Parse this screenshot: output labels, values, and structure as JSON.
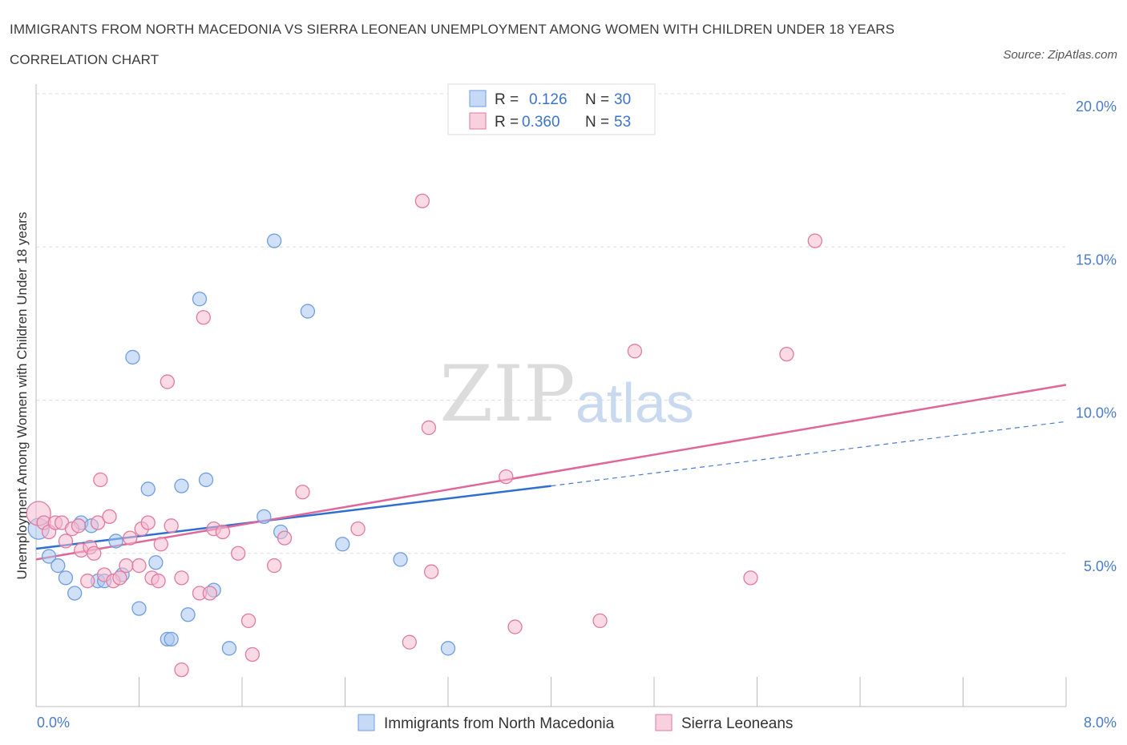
{
  "chart_data": {
    "type": "scatter",
    "title": "IMMIGRANTS FROM NORTH MACEDONIA VS SIERRA LEONEAN UNEMPLOYMENT AMONG WOMEN WITH CHILDREN UNDER 18 YEARS CORRELATION CHART",
    "source": "Source: ZipAtlas.com",
    "ylabel": "Unemployment Among Women with Children Under 18 years",
    "xlim": [
      0,
      8
    ],
    "ylim": [
      0,
      20
    ],
    "x_tick_labels": [
      "0.0%",
      "8.0%"
    ],
    "y_ticks": [
      5,
      10,
      15,
      20
    ],
    "y_tick_labels": [
      "5.0%",
      "10.0%",
      "15.0%",
      "20.0%"
    ],
    "watermark": {
      "zip": "ZIP",
      "atlas": "atlas"
    },
    "legend": [
      {
        "r_label": "R =",
        "r_value": "0.126",
        "n_label": "N =",
        "n_value": "30"
      },
      {
        "r_label": "R =",
        "r_value": "0.360",
        "n_label": "N =",
        "n_value": "53"
      }
    ],
    "series": [
      {
        "name": "Immigrants from North Macedonia",
        "color": "#6f9ee0",
        "fill": "#aac6ef",
        "trend": {
          "x0": 0.0,
          "y0": 5.15,
          "x1": 4.0,
          "y1": 7.2,
          "dash_to_x": 8.0,
          "dash_to_y": 9.3
        },
        "points": [
          [
            0.02,
            5.8
          ],
          [
            0.1,
            4.9
          ],
          [
            0.17,
            4.6
          ],
          [
            0.23,
            4.2
          ],
          [
            0.3,
            3.7
          ],
          [
            0.35,
            6.0
          ],
          [
            0.43,
            5.9
          ],
          [
            0.48,
            4.1
          ],
          [
            0.53,
            4.1
          ],
          [
            0.62,
            5.4
          ],
          [
            0.67,
            4.3
          ],
          [
            0.75,
            11.4
          ],
          [
            0.8,
            3.2
          ],
          [
            0.87,
            7.1
          ],
          [
            0.93,
            4.7
          ],
          [
            1.02,
            2.2
          ],
          [
            1.05,
            2.2
          ],
          [
            1.13,
            7.2
          ],
          [
            1.18,
            3.0
          ],
          [
            1.27,
            13.3
          ],
          [
            1.32,
            7.4
          ],
          [
            1.38,
            3.8
          ],
          [
            1.5,
            1.9
          ],
          [
            1.77,
            6.2
          ],
          [
            1.85,
            15.2
          ],
          [
            1.9,
            5.7
          ],
          [
            2.11,
            12.9
          ],
          [
            2.38,
            5.3
          ],
          [
            2.83,
            4.8
          ],
          [
            3.2,
            1.9
          ]
        ]
      },
      {
        "name": "Sierra Leoneans",
        "color": "#e07ba0",
        "fill": "#f5bccf",
        "trend": {
          "x0": 0.0,
          "y0": 4.8,
          "x1": 8.0,
          "y1": 10.5
        },
        "points": [
          [
            0.02,
            6.3
          ],
          [
            0.06,
            6.0
          ],
          [
            0.1,
            5.7
          ],
          [
            0.15,
            6.0
          ],
          [
            0.2,
            6.0
          ],
          [
            0.23,
            5.4
          ],
          [
            0.28,
            5.8
          ],
          [
            0.33,
            5.9
          ],
          [
            0.35,
            5.1
          ],
          [
            0.4,
            4.1
          ],
          [
            0.42,
            5.2
          ],
          [
            0.45,
            5.0
          ],
          [
            0.48,
            6.0
          ],
          [
            0.5,
            7.4
          ],
          [
            0.53,
            4.3
          ],
          [
            0.57,
            6.2
          ],
          [
            0.6,
            4.1
          ],
          [
            0.65,
            4.2
          ],
          [
            0.7,
            4.6
          ],
          [
            0.73,
            5.5
          ],
          [
            0.8,
            4.6
          ],
          [
            0.82,
            5.8
          ],
          [
            0.87,
            6.0
          ],
          [
            0.9,
            4.2
          ],
          [
            0.95,
            4.1
          ],
          [
            0.97,
            5.3
          ],
          [
            1.02,
            10.6
          ],
          [
            1.05,
            5.9
          ],
          [
            1.13,
            4.2
          ],
          [
            1.13,
            1.2
          ],
          [
            1.27,
            3.7
          ],
          [
            1.3,
            12.7
          ],
          [
            1.35,
            3.7
          ],
          [
            1.38,
            5.8
          ],
          [
            1.45,
            5.7
          ],
          [
            1.57,
            5.0
          ],
          [
            1.65,
            2.8
          ],
          [
            1.68,
            1.7
          ],
          [
            1.85,
            4.6
          ],
          [
            1.93,
            5.5
          ],
          [
            2.07,
            7.0
          ],
          [
            2.5,
            5.8
          ],
          [
            2.9,
            2.1
          ],
          [
            3.0,
            16.5
          ],
          [
            3.05,
            9.1
          ],
          [
            3.07,
            4.4
          ],
          [
            3.65,
            7.5
          ],
          [
            3.72,
            2.6
          ],
          [
            4.38,
            2.8
          ],
          [
            4.65,
            11.6
          ],
          [
            5.55,
            4.2
          ],
          [
            5.83,
            11.5
          ],
          [
            6.05,
            15.2
          ]
        ]
      }
    ]
  }
}
